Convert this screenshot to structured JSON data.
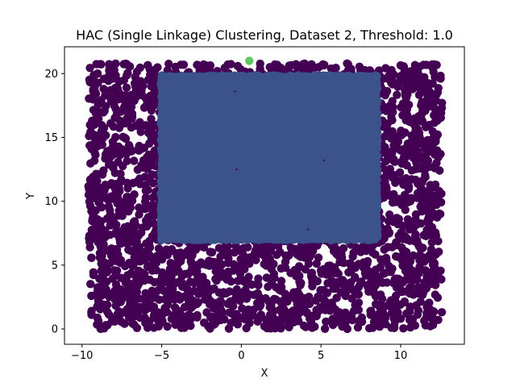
{
  "chart_data": {
    "type": "scatter",
    "title": "HAC (Single Linkage) Clustering, Dataset 2, Threshold: 1.0",
    "xlabel": "X",
    "ylabel": "Y",
    "xlim": [
      -11.1,
      14.0
    ],
    "ylim": [
      -1.2,
      22.1
    ],
    "xticks": [
      -10,
      -5,
      0,
      5,
      10
    ],
    "yticks": [
      0,
      5,
      10,
      15,
      20
    ],
    "grid": false,
    "legend": "none",
    "series": [
      {
        "color": "#440154",
        "region": "frame",
        "bounds": {
          "x": [
            -9.6,
            12.6
          ],
          "y": [
            0.0,
            20.8
          ]
        },
        "hole": {
          "x": [
            -5.0,
            8.5
          ],
          "y": [
            7.0,
            19.8
          ]
        },
        "description_points": "dense uniform points filling the frame around the rectangle"
      },
      {
        "color": "#3b528b",
        "region": "rectangle",
        "bounds": {
          "x": [
            -5.0,
            8.5
          ],
          "y": [
            7.0,
            19.8
          ]
        }
      },
      {
        "color": "#5ec962",
        "region": "point",
        "points": [
          [
            0.5,
            21.0
          ]
        ]
      }
    ],
    "stray_points": [
      [
        -0.4,
        18.6
      ],
      [
        -0.3,
        12.5
      ],
      [
        4.2,
        7.8
      ],
      [
        5.2,
        13.2
      ]
    ]
  }
}
